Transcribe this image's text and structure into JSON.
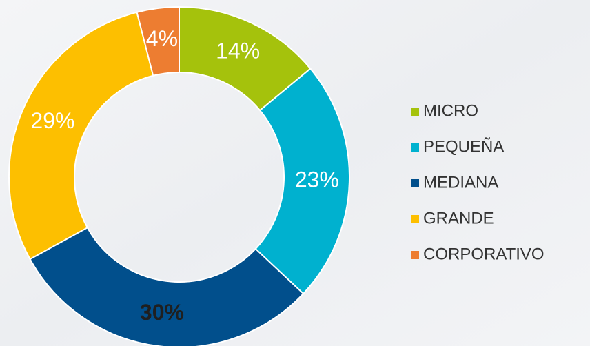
{
  "chart_data": {
    "type": "donut",
    "categories": [
      "MICRO",
      "PEQUEÑA",
      "MEDIANA",
      "GRANDE",
      "CORPORATIVO"
    ],
    "values": [
      14,
      23,
      30,
      29,
      4
    ],
    "value_labels": [
      "14%",
      "23%",
      "30%",
      "29%",
      "4%"
    ],
    "colors": [
      "#a5c20c",
      "#00b1cf",
      "#014f8c",
      "#fdbf00",
      "#ed7d31"
    ],
    "legend": "right"
  }
}
